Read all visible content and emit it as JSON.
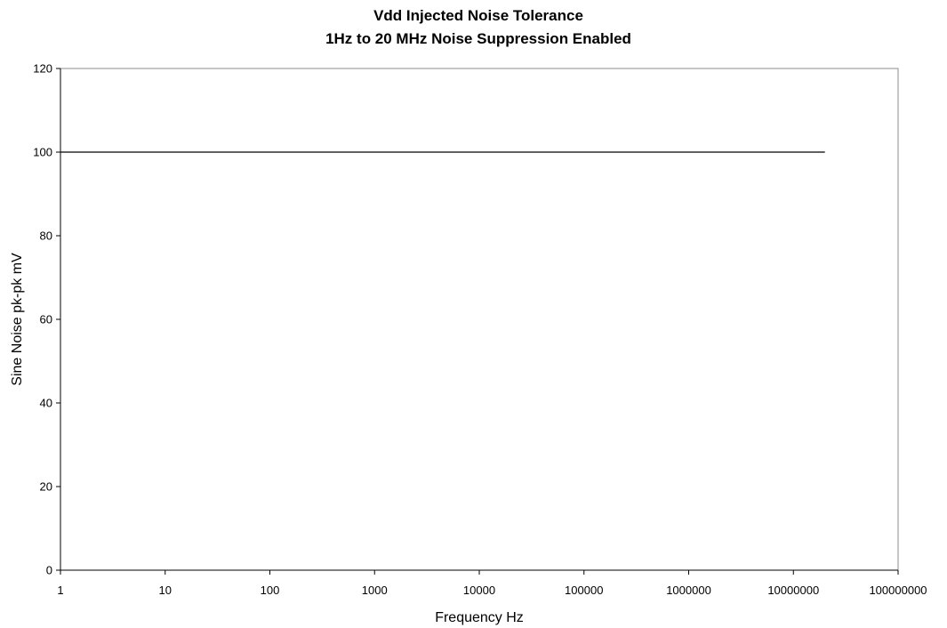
{
  "chart_data": {
    "type": "line",
    "title": "Vdd Injected Noise Tolerance",
    "subtitle": "1Hz to 20 MHz Noise Suppression Enabled",
    "xlabel": "Frequency Hz",
    "ylabel": "Sine Noise pk-pk mV",
    "x_scale": "log",
    "xlim": [
      1,
      100000000
    ],
    "ylim": [
      0,
      120
    ],
    "x_ticks": [
      "1",
      "10",
      "100",
      "1000",
      "10000",
      "100000",
      "1000000",
      "10000000",
      "100000000"
    ],
    "y_ticks": [
      "0",
      "20",
      "40",
      "60",
      "80",
      "100",
      "120"
    ],
    "grid": false,
    "legend": "none",
    "series": [
      {
        "x": [
          1,
          20000000
        ],
        "y": [
          100,
          100
        ],
        "color": "#000000"
      }
    ]
  }
}
